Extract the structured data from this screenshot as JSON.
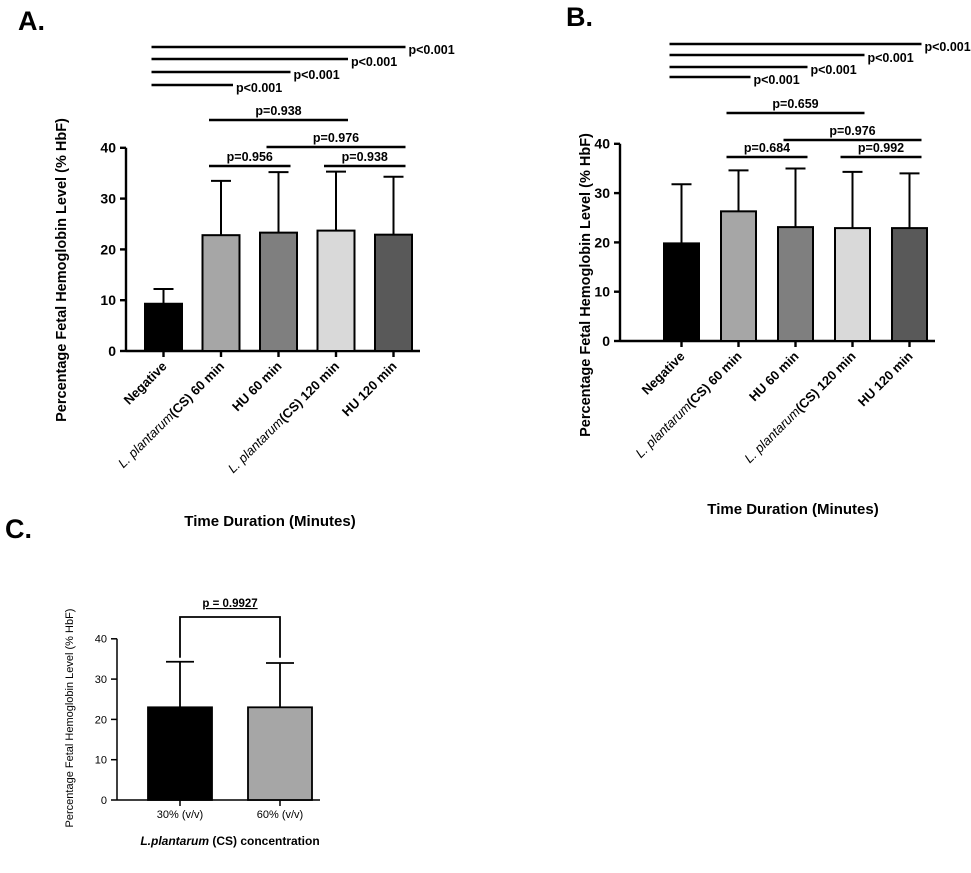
{
  "panels": [
    {
      "id": "A",
      "panel_label": "A.",
      "ylabel": "Percentage Fetal Hemoglobin Level (% HbF)",
      "xlabel": "Time Duration (Minutes)"
    },
    {
      "id": "B",
      "panel_label": "B.",
      "ylabel": "Percentage Fetal Hemoglobin Level (% HbF)",
      "xlabel": "Time Duration (Minutes)"
    },
    {
      "id": "C",
      "panel_label": "C.",
      "ylabel": "Percentage Fetal Hemoglobin Level (% HbF)",
      "xlabel_italic": "L.plantarum",
      "xlabel_rest": " (CS) concentration"
    }
  ],
  "chart_data": [
    {
      "type": "bar",
      "panel": "A",
      "categories": [
        {
          "italic": "",
          "rest": "Negative"
        },
        {
          "italic": "L. plantarum",
          "rest": "(CS) 60 min"
        },
        {
          "italic": "",
          "rest": "HU 60 min"
        },
        {
          "italic": "L. plantarum",
          "rest": "(CS) 120 min"
        },
        {
          "italic": "",
          "rest": "HU 120 min"
        }
      ],
      "values": [
        9.3,
        22.8,
        23.3,
        23.7,
        22.9
      ],
      "error_upper": [
        12.2,
        33.5,
        35.2,
        35.3,
        34.3
      ],
      "colors": [
        "#000000",
        "#a6a6a6",
        "#7f7f7f",
        "#d9d9d9",
        "#595959"
      ],
      "ylim": [
        0,
        40
      ],
      "yticks": [
        "0",
        "10",
        "20",
        "30",
        "40"
      ],
      "ylabel": "Percentage Fetal Hemoglobin Level (% HbF)",
      "xlabel": "Time Duration (Minutes)",
      "comparisons": [
        {
          "from": 1,
          "to": 2,
          "label": "p=0.956"
        },
        {
          "from": 3,
          "to": 4,
          "label": "p=0.938"
        },
        {
          "from": 2,
          "to": 4,
          "label": "p=0.976"
        },
        {
          "from": 1,
          "to": 3,
          "label": "p=0.938"
        },
        {
          "from": 0,
          "to": 1,
          "label": "p<0.001"
        },
        {
          "from": 0,
          "to": 2,
          "label": "p<0.001"
        },
        {
          "from": 0,
          "to": 3,
          "label": "p<0.001"
        },
        {
          "from": 0,
          "to": 4,
          "label": "p<0.001"
        }
      ]
    },
    {
      "type": "bar",
      "panel": "B",
      "categories": [
        {
          "italic": "",
          "rest": "Negative"
        },
        {
          "italic": "L. plantarum",
          "rest": "(CS) 60 min"
        },
        {
          "italic": "",
          "rest": "HU 60 min"
        },
        {
          "italic": "L. plantarum",
          "rest": "(CS) 120 min"
        },
        {
          "italic": "",
          "rest": "HU 120 min"
        }
      ],
      "values": [
        19.8,
        26.3,
        23.1,
        22.9,
        22.9
      ],
      "error_upper": [
        31.8,
        34.6,
        35.0,
        34.3,
        34.0
      ],
      "colors": [
        "#000000",
        "#a6a6a6",
        "#7f7f7f",
        "#d9d9d9",
        "#595959"
      ],
      "ylim": [
        0,
        40
      ],
      "yticks": [
        "0",
        "10",
        "20",
        "30",
        "40"
      ],
      "ylabel": "Percentage Fetal Hemoglobin Level (% HbF)",
      "xlabel": "Time Duration (Minutes)",
      "comparisons": [
        {
          "from": 1,
          "to": 2,
          "label": "p=0.684"
        },
        {
          "from": 3,
          "to": 4,
          "label": "p=0.992"
        },
        {
          "from": 2,
          "to": 4,
          "label": "p=0.976"
        },
        {
          "from": 1,
          "to": 3,
          "label": "p=0.659"
        },
        {
          "from": 0,
          "to": 1,
          "label": "p<0.001"
        },
        {
          "from": 0,
          "to": 2,
          "label": "p<0.001"
        },
        {
          "from": 0,
          "to": 3,
          "label": "p<0.001"
        },
        {
          "from": 0,
          "to": 4,
          "label": "p<0.001"
        }
      ]
    },
    {
      "type": "bar",
      "panel": "C",
      "categories": [
        {
          "italic": "",
          "rest": "30% (v/v)"
        },
        {
          "italic": "",
          "rest": "60% (v/v)"
        }
      ],
      "values": [
        23.0,
        23.0
      ],
      "error_upper": [
        34.3,
        34.0
      ],
      "colors": [
        "#000000",
        "#a6a6a6"
      ],
      "ylim": [
        0,
        40
      ],
      "yticks": [
        "0",
        "10",
        "20",
        "30",
        "40"
      ],
      "ylabel": "Percentage Fetal Hemoglobin Level (% HbF)",
      "xlabel": "L.plantarum (CS) concentration",
      "comparisons": [
        {
          "from": 0,
          "to": 1,
          "label": "p = 0.9927",
          "style": "bracket"
        }
      ]
    }
  ]
}
